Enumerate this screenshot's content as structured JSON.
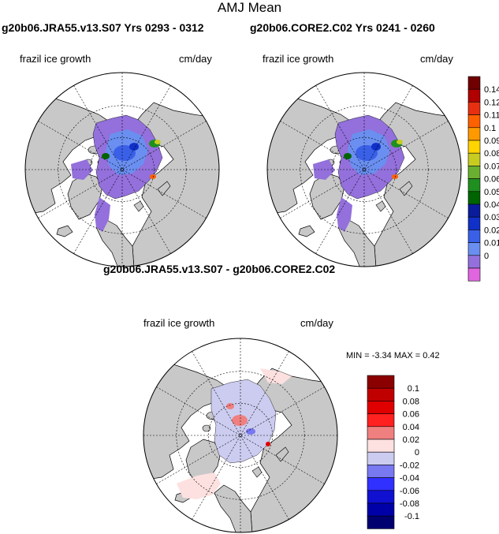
{
  "figure": {
    "title": "AMJ Mean"
  },
  "panels": [
    {
      "id": "jra55",
      "run_title": "g20b06.JRA55.v13.S07  Yrs 0293 - 0312",
      "variable": "frazil ice growth",
      "units": "cm/day"
    },
    {
      "id": "core2",
      "run_title": "g20b06.CORE2.C02  Yrs 0241 - 0260",
      "variable": "frazil ice growth",
      "units": "cm/day"
    },
    {
      "id": "diff",
      "run_title": "g20b06.JRA55.v13.S07 - g20b06.CORE2.C02",
      "variable": "frazil ice growth",
      "units": "cm/day",
      "min_label": "MIN = ",
      "min_value": "-3.34",
      "max_label": "MAX = ",
      "max_value": "0.42"
    }
  ],
  "chart_data": [
    {
      "type": "heatmap",
      "projection": "north-polar-stereographic",
      "title": "g20b06.JRA55.v13.S07  Yrs 0293 - 0312",
      "variable": "frazil ice growth",
      "units": "cm/day",
      "colorbar": {
        "levels": [
          "0",
          "0.01",
          "0.02",
          "0.03",
          "0.04",
          "0.05",
          "0.06",
          "0.07",
          "0.08",
          "0.09",
          "0.1",
          "0.11",
          "0.12",
          "0.14"
        ],
        "colors": [
          "#e066e0",
          "#9370db",
          "#6a8ff0",
          "#3a60e8",
          "#1030c8",
          "#0a1c9a",
          "#006400",
          "#1f8f1f",
          "#6ab030",
          "#c8cc20",
          "#ffd400",
          "#ff9900",
          "#ff6000",
          "#e83010",
          "#b00000",
          "#700000"
        ],
        "orientation": "vertical"
      }
    },
    {
      "type": "heatmap",
      "projection": "north-polar-stereographic",
      "title": "g20b06.CORE2.C02  Yrs 0241 - 0260",
      "variable": "frazil ice growth",
      "units": "cm/day",
      "colorbar_shared_with": "g20b06.JRA55.v13.S07  Yrs 0293 - 0312"
    },
    {
      "type": "heatmap",
      "projection": "north-polar-stereographic",
      "title": "g20b06.JRA55.v13.S07 - g20b06.CORE2.C02",
      "variable": "frazil ice growth",
      "units": "cm/day",
      "min": -3.34,
      "max": 0.42,
      "colorbar": {
        "levels": [
          "0.1",
          "0.08",
          "0.06",
          "0.04",
          "0.02",
          "0",
          "-0.02",
          "-0.04",
          "-0.06",
          "-0.08",
          "-0.1"
        ],
        "colors": [
          "#8b0000",
          "#c00000",
          "#e00000",
          "#ff2020",
          "#f08080",
          "#fde0e0",
          "#ccccf0",
          "#7878f0",
          "#3030ff",
          "#1010d0",
          "#0000a8",
          "#000070"
        ],
        "orientation": "vertical"
      }
    }
  ],
  "colors": {
    "land": "#c8c8c8",
    "ocean": "#ffffff",
    "field_fill": "#9370db",
    "diff_pos": "#fde0e0",
    "diff_neg": "#ccccf0"
  }
}
